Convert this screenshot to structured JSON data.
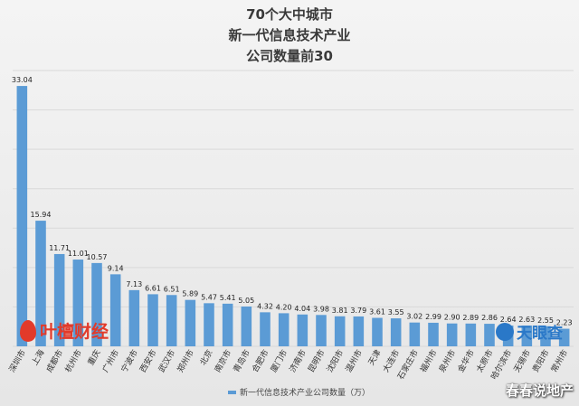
{
  "title_lines": [
    "70个大中城市",
    "新一代信息技术产业",
    "公司数量前30"
  ],
  "watermark_left": "叶檀财经",
  "watermark_right": "天眼查",
  "source_text": "春春说地产",
  "colors": {
    "bar": "#5b9bd5",
    "grid": "#d9d9d9"
  },
  "chart_data": {
    "type": "bar",
    "categories": [
      "深圳市",
      "上海",
      "成都市",
      "杭州市",
      "重庆",
      "广州市",
      "宁波市",
      "西安市",
      "武汉市",
      "郑州市",
      "北京",
      "南京市",
      "青岛市",
      "合肥市",
      "厦门市",
      "济南市",
      "昆明市",
      "沈阳市",
      "温州市",
      "天津",
      "大连市",
      "石家庄市",
      "福州市",
      "泉州市",
      "金华市",
      "太原市",
      "哈尔滨市",
      "无锡市",
      "贵阳市",
      "常州市"
    ],
    "series": [
      {
        "name": "新一代信息技术产业公司数量（万）",
        "values": [
          33.04,
          15.94,
          11.71,
          11.01,
          10.57,
          9.14,
          7.13,
          6.61,
          6.51,
          5.89,
          5.47,
          5.41,
          5.05,
          4.32,
          4.2,
          4.04,
          3.98,
          3.81,
          3.79,
          3.61,
          3.55,
          3.02,
          2.99,
          2.9,
          2.89,
          2.86,
          2.64,
          2.63,
          2.55,
          2.23
        ]
      }
    ],
    "data_labels": [
      "33.04",
      "15.94",
      "11.71",
      "11.01",
      "10.57",
      "9.14",
      "7.13",
      "6.61",
      "6.51",
      "5.89",
      "5.47",
      "5.41",
      "5.05",
      "4.32",
      "4.20",
      "4.04",
      "3.98",
      "3.81",
      "3.79",
      "3.61",
      "3.55",
      "3.02",
      "2.99",
      "2.90",
      "2.89",
      "2.86",
      "2.64",
      "2.63",
      "2.55",
      "2.23"
    ],
    "ylim": [
      0,
      35
    ],
    "grid": true,
    "legend_position": "bottom"
  }
}
